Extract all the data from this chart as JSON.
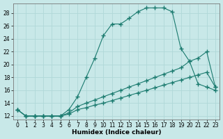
{
  "xlabel": "Humidex (Indice chaleur)",
  "bg_color": "#c8e8e8",
  "grid_color": "#b0d8d8",
  "line_color": "#1a7a6e",
  "xlim": [
    -0.5,
    23.5
  ],
  "ylim": [
    11.5,
    29.5
  ],
  "xticks": [
    0,
    1,
    2,
    3,
    4,
    5,
    6,
    7,
    8,
    9,
    10,
    11,
    12,
    13,
    14,
    15,
    16,
    17,
    18,
    19,
    20,
    21,
    22,
    23
  ],
  "yticks": [
    12,
    14,
    16,
    18,
    20,
    22,
    24,
    26,
    28
  ],
  "line1_x": [
    0,
    1,
    2,
    3,
    4,
    5,
    6,
    7,
    8,
    9,
    10,
    11,
    12,
    13,
    14,
    15,
    16,
    17,
    18,
    19,
    20,
    21,
    22,
    23
  ],
  "line1_y": [
    13,
    12,
    12,
    12,
    12,
    12,
    13,
    15,
    18,
    21,
    24.5,
    26.3,
    26.3,
    27.2,
    28.2,
    28.8,
    28.8,
    28.8,
    28.2,
    22.5,
    20.5,
    17,
    16.5,
    16
  ],
  "line2_x": [
    0,
    1,
    2,
    3,
    4,
    5,
    6,
    7,
    8,
    9,
    10,
    11,
    12,
    13,
    14,
    15,
    16,
    17,
    18,
    19,
    20,
    21,
    22,
    23
  ],
  "line2_y": [
    13,
    12,
    12,
    12,
    12,
    12,
    12.5,
    13.5,
    14.0,
    14.5,
    15.0,
    15.5,
    16.0,
    16.5,
    17.0,
    17.5,
    18.0,
    18.5,
    19.0,
    19.5,
    20.5,
    21.0,
    22.0,
    16.5
  ],
  "line3_x": [
    0,
    1,
    2,
    3,
    4,
    5,
    6,
    7,
    8,
    9,
    10,
    11,
    12,
    13,
    14,
    15,
    16,
    17,
    18,
    19,
    20,
    21,
    22,
    23
  ],
  "line3_y": [
    13,
    12,
    12,
    12,
    12,
    12,
    12.3,
    13.0,
    13.3,
    13.7,
    14.0,
    14.4,
    14.8,
    15.2,
    15.6,
    16.0,
    16.4,
    16.8,
    17.2,
    17.6,
    18.0,
    18.4,
    18.8,
    16.5
  ]
}
